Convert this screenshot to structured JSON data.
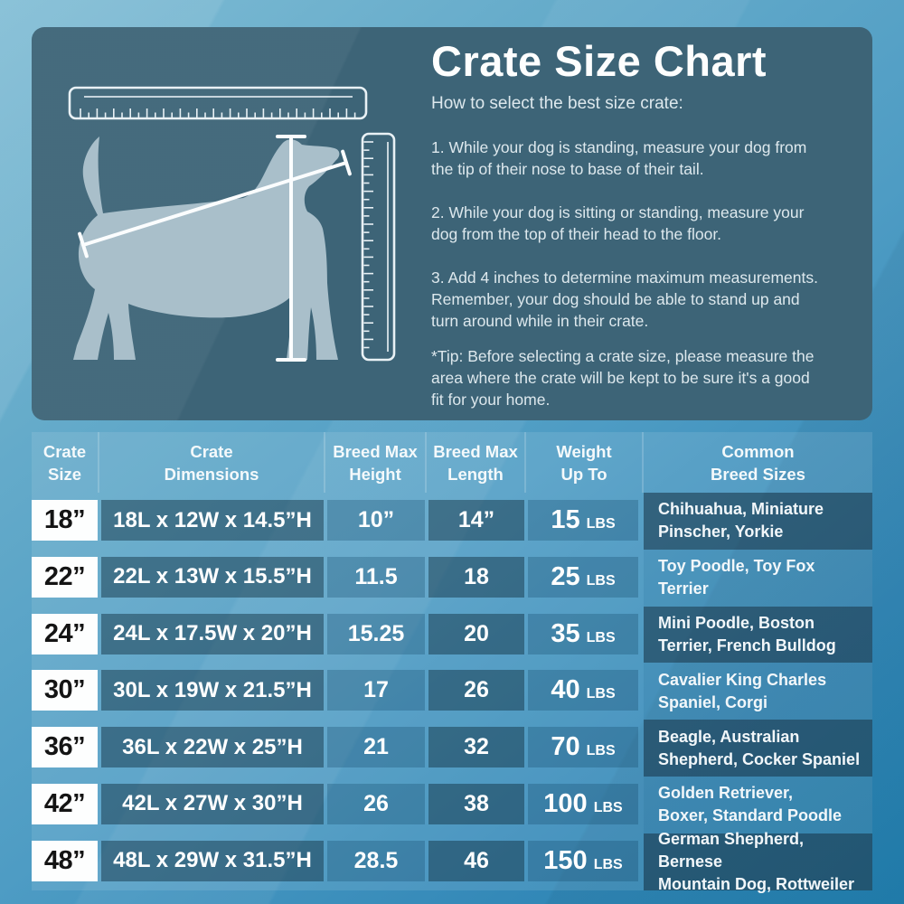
{
  "panel": {
    "title": "Crate Size Chart",
    "subtitle": "How to select the best size crate:",
    "steps": [
      "1. While your dog is standing, measure your dog from\nthe tip of their nose to base of their tail.",
      "2. While your dog is sitting or standing, measure your\ndog from the top of their head to the floor.",
      "3. Add 4 inches to determine maximum measurements.\nRemember, your dog should be able to stand up and\nturn around while in their crate."
    ],
    "tip": "*Tip: Before selecting a crate size, please measure the\narea where the crate will be kept to be sure it's a good\nfit for your home.",
    "illustration": {
      "parts": [
        "horizontal-ruler",
        "vertical-ruler",
        "dog-silhouette",
        "nose-to-tail-measure-line",
        "head-to-floor-measure-line"
      ]
    }
  },
  "table": {
    "headers": [
      "Crate\nSize",
      "Crate\nDimensions",
      "Breed Max\nHeight",
      "Breed Max\nLength",
      "Weight\nUp To",
      "Common\nBreed Sizes"
    ],
    "rows": [
      {
        "size": "18”",
        "dimensions": "18L x 12W x 14.5”H",
        "max_height": "10”",
        "max_length": "14”",
        "weight": {
          "value": "15",
          "unit": "LBS"
        },
        "breeds": "Chihuahua, Miniature\nPinscher, Yorkie"
      },
      {
        "size": "22”",
        "dimensions": "22L x 13W x 15.5”H",
        "max_height": "11.5",
        "max_length": "18",
        "weight": {
          "value": "25",
          "unit": "LBS"
        },
        "breeds": "Toy Poodle, Toy Fox\nTerrier"
      },
      {
        "size": "24”",
        "dimensions": "24L x 17.5W x 20”H",
        "max_height": "15.25",
        "max_length": "20",
        "weight": {
          "value": "35",
          "unit": "LBS"
        },
        "breeds": "Mini Poodle, Boston\nTerrier, French Bulldog"
      },
      {
        "size": "30”",
        "dimensions": "30L x 19W x 21.5”H",
        "max_height": "17",
        "max_length": "26",
        "weight": {
          "value": "40",
          "unit": "LBS"
        },
        "breeds": "Cavalier King Charles\nSpaniel, Corgi"
      },
      {
        "size": "36”",
        "dimensions": "36L x 22W x 25”H",
        "max_height": "21",
        "max_length": "32",
        "weight": {
          "value": "70",
          "unit": "LBS"
        },
        "breeds": "Beagle, Australian\nShepherd, Cocker Spaniel"
      },
      {
        "size": "42”",
        "dimensions": "42L x 27W x 30”H",
        "max_height": "26",
        "max_length": "38",
        "weight": {
          "value": "100",
          "unit": "LBS"
        },
        "breeds": "Golden Retriever,\nBoxer, Standard Poodle"
      },
      {
        "size": "48”",
        "dimensions": "48L x 29W x 31.5”H",
        "max_height": "28.5",
        "max_length": "46",
        "weight": {
          "value": "150",
          "unit": "LBS"
        },
        "breeds": "German Shepherd, Bernese\nMountain Dog, Rottweiler"
      }
    ]
  },
  "colors": {
    "panel_bg": "#3d6477",
    "page_gradient_top": "#7fbcd4",
    "page_gradient_bottom": "#2180b0",
    "dark_cell": "#3d708a",
    "medium_cell": "#4d8bad",
    "breed_dark": "#39677f",
    "breed_light": "#589dc0",
    "size_cell_bg": "#ffffff",
    "dog_silhouette": "#a9bfca",
    "text_light": "#dde8ed"
  }
}
